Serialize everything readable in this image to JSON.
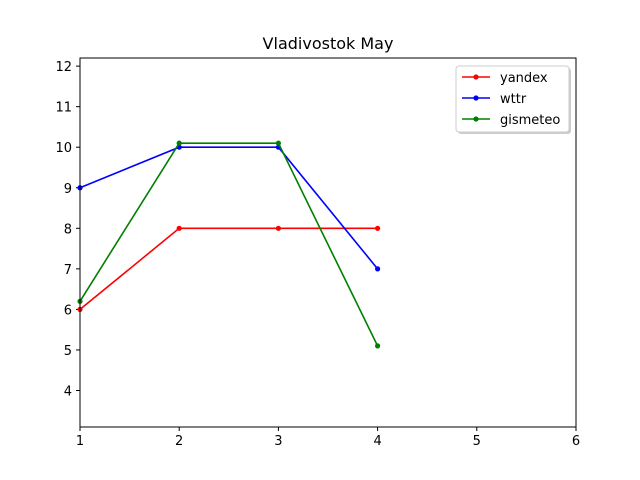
{
  "chart_data": {
    "type": "line",
    "title": "Vladivostok May",
    "xlabel": "",
    "ylabel": "",
    "xlim": [
      1,
      6
    ],
    "ylim": [
      3.1,
      12.2
    ],
    "x_ticks": [
      1,
      2,
      3,
      4,
      5,
      6
    ],
    "y_ticks": [
      4,
      5,
      6,
      7,
      8,
      9,
      10,
      11,
      12
    ],
    "grid": false,
    "legend_position": "top-right",
    "series": [
      {
        "name": "yandex",
        "color": "#ff0000",
        "x": [
          1,
          2,
          3,
          4
        ],
        "y": [
          6,
          8,
          8,
          8
        ]
      },
      {
        "name": "wttr",
        "color": "#0000ff",
        "x": [
          1,
          2,
          3,
          4
        ],
        "y": [
          9,
          10,
          10,
          7
        ]
      },
      {
        "name": "gismeteo",
        "color": "#008000",
        "x": [
          1,
          2,
          3,
          4
        ],
        "y": [
          6.2,
          10.1,
          10.1,
          5.1
        ]
      }
    ]
  }
}
